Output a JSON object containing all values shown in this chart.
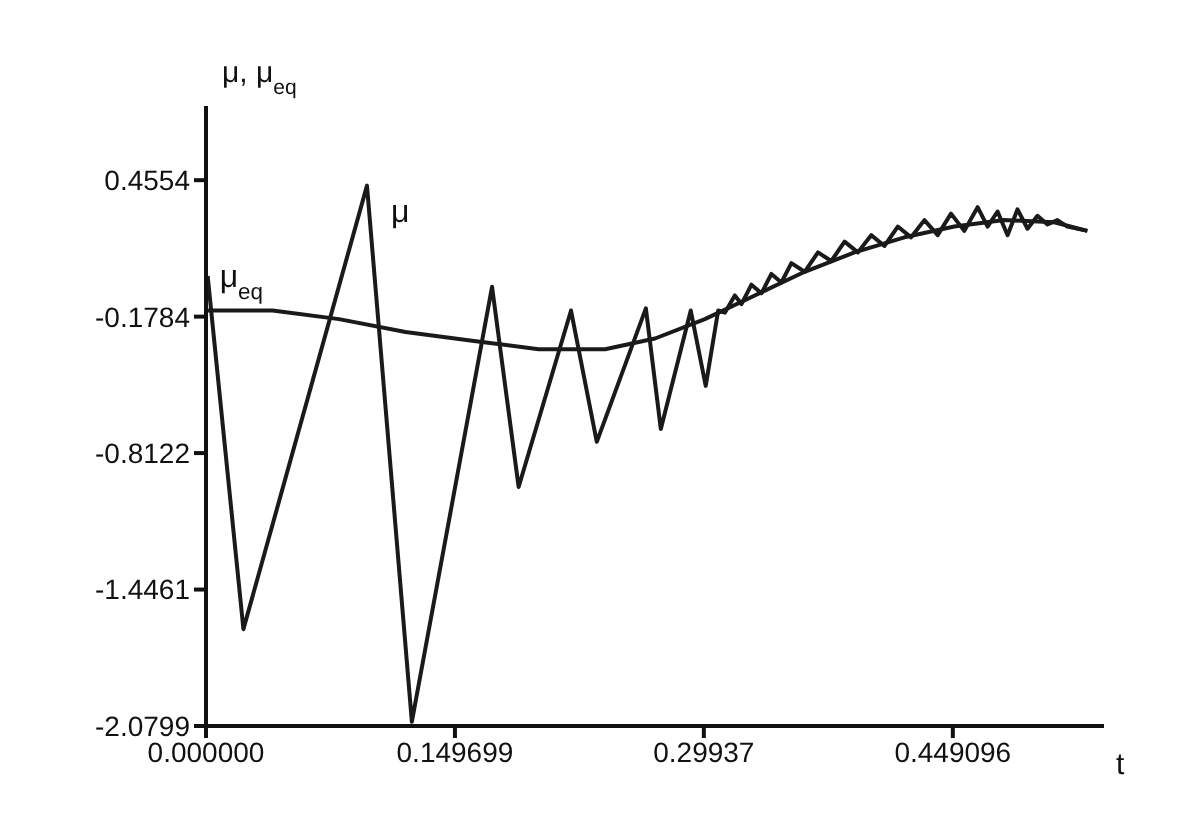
{
  "chart_data": {
    "type": "line",
    "xlabel": "t",
    "ylabel": "μ, μ$_{eq}$",
    "xlim": [
      0,
      0.54
    ],
    "ylim": [
      -2.0799,
      0.8
    ],
    "xticks": [
      {
        "value": 0,
        "label": "0.000000"
      },
      0.149699,
      0.29937,
      0.449096
    ],
    "yticks": [
      0.4554,
      -0.1784,
      -0.8122,
      -1.4461,
      -2.0799
    ],
    "marker": "none",
    "line_style": "solid",
    "series": [
      {
        "name": "μ",
        "color": "#1a1a1a",
        "x": [
          0.001,
          0.0225,
          0.0968,
          0.1238,
          0.172,
          0.188,
          0.2195,
          0.235,
          0.2645,
          0.2735,
          0.2915,
          0.3005,
          0.308,
          0.312,
          0.318,
          0.322,
          0.328,
          0.334,
          0.34,
          0.346,
          0.352,
          0.36,
          0.368,
          0.376,
          0.384,
          0.392,
          0.4,
          0.408,
          0.416,
          0.424,
          0.432,
          0.44,
          0.448,
          0.456,
          0.464,
          0.47,
          0.476,
          0.482,
          0.488,
          0.494,
          0.5,
          0.506,
          0.512,
          0.518,
          0.53
        ],
        "values": [
          0.01,
          -1.63,
          0.43,
          -2.06,
          -0.04,
          -0.97,
          -0.15,
          -0.76,
          -0.14,
          -0.7,
          -0.15,
          -0.5,
          -0.15,
          -0.16,
          -0.08,
          -0.12,
          -0.03,
          -0.07,
          0.02,
          -0.02,
          0.07,
          0.03,
          0.12,
          0.08,
          0.17,
          0.12,
          0.2,
          0.15,
          0.24,
          0.19,
          0.27,
          0.2,
          0.3,
          0.22,
          0.33,
          0.24,
          0.31,
          0.2,
          0.32,
          0.23,
          0.29,
          0.25,
          0.27,
          0.24,
          0.22
        ]
      },
      {
        "name": "μ$_{eq}$",
        "color": "#1a1a1a",
        "x": [
          0.001,
          0.04,
          0.08,
          0.12,
          0.16,
          0.2,
          0.24,
          0.27,
          0.3,
          0.33,
          0.36,
          0.39,
          0.42,
          0.45,
          0.48,
          0.51,
          0.53
        ],
        "values": [
          -0.15,
          -0.15,
          -0.19,
          -0.25,
          -0.29,
          -0.33,
          -0.33,
          -0.28,
          -0.19,
          -0.08,
          0.03,
          0.12,
          0.19,
          0.24,
          0.27,
          0.26,
          0.22
        ]
      }
    ]
  }
}
